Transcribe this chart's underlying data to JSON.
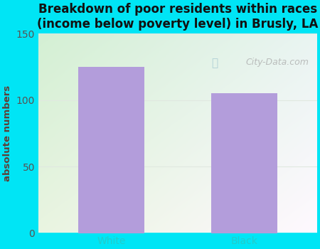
{
  "categories": [
    "White",
    "Black"
  ],
  "values": [
    125,
    105
  ],
  "bar_color": "#b39ddb",
  "title": "Breakdown of poor residents within races\n(income below poverty level) in Brusly, LA",
  "ylabel": "absolute numbers",
  "ylim": [
    0,
    150
  ],
  "yticks": [
    0,
    50,
    100,
    150
  ],
  "title_fontsize": 12,
  "label_fontsize": 9.5,
  "tick_fontsize": 10,
  "bg_outer": "#00e5f5",
  "watermark": "City-Data.com",
  "grid_color": "#e0e8e0",
  "bar_width": 0.5,
  "xlim": [
    -0.55,
    1.55
  ]
}
